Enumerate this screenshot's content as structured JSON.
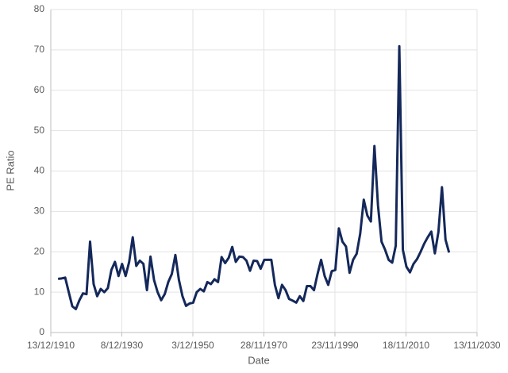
{
  "chart_data": {
    "type": "line",
    "xlabel": "Date",
    "ylabel": "PE Ratio",
    "x": [
      1913,
      1914,
      1915,
      1916,
      1917,
      1918,
      1919,
      1920,
      1921,
      1922,
      1923,
      1924,
      1925,
      1926,
      1927,
      1928,
      1929,
      1930,
      1931,
      1932,
      1933,
      1934,
      1935,
      1936,
      1937,
      1938,
      1939,
      1940,
      1941,
      1942,
      1943,
      1944,
      1945,
      1946,
      1947,
      1948,
      1949,
      1950,
      1951,
      1952,
      1953,
      1954,
      1955,
      1956,
      1957,
      1958,
      1959,
      1960,
      1961,
      1962,
      1963,
      1964,
      1965,
      1966,
      1967,
      1968,
      1969,
      1970,
      1971,
      1972,
      1973,
      1974,
      1975,
      1976,
      1977,
      1978,
      1979,
      1980,
      1981,
      1982,
      1983,
      1984,
      1985,
      1986,
      1987,
      1988,
      1989,
      1990,
      1991,
      1992,
      1993,
      1994,
      1995,
      1996,
      1997,
      1998,
      1999,
      2000,
      2001,
      2002,
      2003,
      2004,
      2005,
      2006,
      2007,
      2008,
      2009,
      2010,
      2011,
      2012,
      2013,
      2014,
      2015,
      2016,
      2017,
      2018,
      2019,
      2020,
      2021,
      2022,
      2023
    ],
    "series": [
      {
        "name": "PE Ratio",
        "color": "#14285a",
        "values": [
          13.3,
          13.4,
          13.6,
          10.0,
          6.5,
          5.8,
          8.0,
          9.7,
          9.5,
          22.5,
          12.0,
          9.0,
          10.8,
          10.0,
          11.0,
          15.5,
          17.5,
          14.0,
          17.0,
          14.0,
          17.5,
          23.6,
          16.5,
          17.8,
          17.0,
          10.5,
          18.8,
          13.0,
          10.0,
          8.0,
          9.5,
          12.5,
          14.5,
          19.2,
          13.0,
          9.0,
          6.6,
          7.2,
          7.4,
          10.0,
          10.8,
          10.2,
          12.5,
          12.0,
          13.2,
          12.5,
          18.7,
          17.2,
          18.5,
          21.2,
          17.5,
          18.8,
          18.7,
          17.8,
          15.3,
          17.8,
          17.7,
          15.8,
          18.0,
          18.0,
          18.0,
          11.8,
          8.5,
          11.8,
          10.5,
          8.3,
          7.9,
          7.4,
          9.0,
          7.8,
          11.5,
          11.5,
          10.5,
          14.5,
          18.0,
          14.0,
          11.8,
          15.2,
          15.5,
          25.8,
          22.5,
          21.3,
          14.8,
          18.0,
          19.5,
          24.5,
          32.9,
          29.0,
          27.5,
          46.2,
          31.5,
          22.5,
          20.5,
          18.0,
          17.3,
          21.5,
          70.9,
          20.5,
          16.3,
          14.9,
          17.0,
          18.2,
          20.0,
          22.0,
          23.6,
          25.0,
          19.6,
          24.9,
          36.0,
          23.0,
          19.8
        ]
      }
    ],
    "xlim": [
      1910.95,
      2030.87
    ],
    "xticks": [
      {
        "value": 1910.95,
        "label": "13/12/1910"
      },
      {
        "value": 1930.93,
        "label": "8/12/1930"
      },
      {
        "value": 1950.92,
        "label": "3/12/1950"
      },
      {
        "value": 1970.91,
        "label": "28/11/1970"
      },
      {
        "value": 1990.89,
        "label": "23/11/1990"
      },
      {
        "value": 2010.88,
        "label": "18/11/2010"
      },
      {
        "value": 2030.87,
        "label": "13/11/2030"
      }
    ],
    "ylim": [
      0,
      80
    ],
    "yticks": [
      0,
      10,
      20,
      30,
      40,
      50,
      60,
      70,
      80
    ],
    "grid": true
  }
}
